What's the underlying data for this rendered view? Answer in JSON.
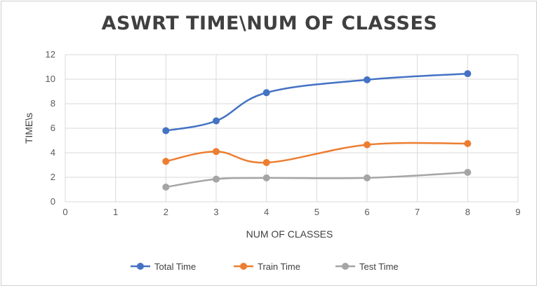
{
  "chart_data": {
    "type": "line",
    "title": "ASWRT TIME\\NUM OF CLASSES",
    "xlabel": "NUM OF CLASSES",
    "ylabel": "TIME\\s",
    "xlim": [
      0,
      9
    ],
    "ylim": [
      0,
      12
    ],
    "xticks": [
      "0",
      "1",
      "2",
      "3",
      "4",
      "5",
      "6",
      "7",
      "8",
      "9"
    ],
    "yticks": [
      "0",
      "2",
      "4",
      "6",
      "8",
      "10",
      "12"
    ],
    "grid": true,
    "legend_position": "bottom",
    "x": [
      2,
      3,
      4,
      6,
      8
    ],
    "series": [
      {
        "name": "Total Time",
        "color": "#4472c4",
        "values": [
          5.8,
          6.6,
          8.9,
          9.95,
          10.45
        ]
      },
      {
        "name": "Train Time",
        "color": "#ed7d31",
        "values": [
          3.3,
          4.1,
          3.2,
          4.65,
          4.75
        ]
      },
      {
        "name": "Test Time",
        "color": "#a5a5a5",
        "values": [
          1.2,
          1.85,
          1.95,
          1.95,
          2.4
        ]
      }
    ]
  }
}
